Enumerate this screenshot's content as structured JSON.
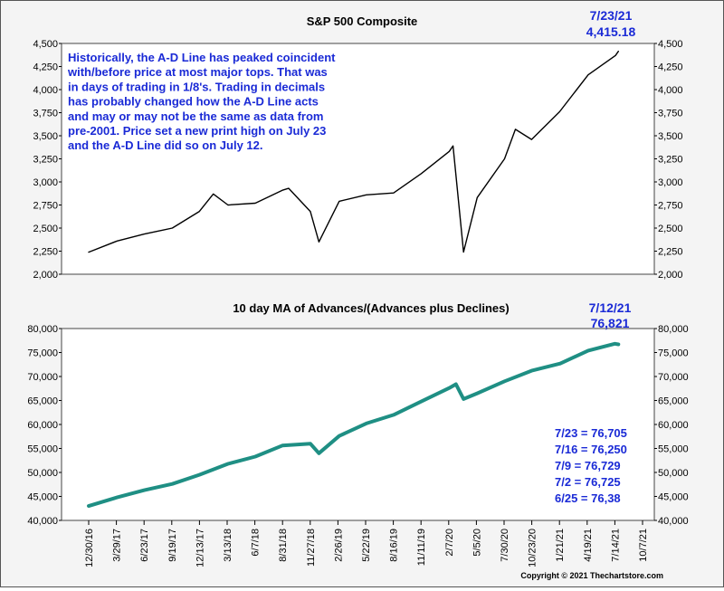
{
  "chart_data": [
    {
      "type": "line",
      "title": "S&P 500 Composite",
      "ylim": [
        2000,
        4500
      ],
      "yticks": [
        "2,000",
        "2,250",
        "2,500",
        "2,750",
        "3,000",
        "3,250",
        "3,500",
        "3,750",
        "4,000",
        "4,250",
        "4,500"
      ],
      "color": "#000000",
      "series": [
        {
          "x": [
            "2016-12-30",
            "2017-03-29",
            "2017-06-23",
            "2017-09-19",
            "2017-12-13",
            "2018-01-26",
            "2018-03-13",
            "2018-06-07",
            "2018-08-31",
            "2018-09-20",
            "2018-11-27",
            "2018-12-24",
            "2019-02-26",
            "2019-05-22",
            "2019-08-16",
            "2019-11-11",
            "2020-02-07",
            "2020-02-19",
            "2020-03-23",
            "2020-05-05",
            "2020-07-30",
            "2020-09-02",
            "2020-10-23",
            "2021-01-19",
            "2021-04-19",
            "2021-07-14",
            "2021-07-23"
          ],
          "values": [
            2239,
            2360,
            2435,
            2500,
            2680,
            2870,
            2750,
            2770,
            2910,
            2930,
            2680,
            2350,
            2790,
            2860,
            2880,
            3090,
            3330,
            3390,
            2240,
            2830,
            3250,
            3570,
            3460,
            3760,
            4160,
            4370,
            4415
          ]
        }
      ],
      "annotation": {
        "date": "7/23/21",
        "value": "4,415.18"
      },
      "note": [
        "Historically, the A-D Line has peaked coincident",
        "with/before price at most major tops.  That was",
        "in days of trading in 1/8's.  Trading in decimals",
        "has probably changed how the A-D Line acts",
        "and may or may not be the same as data from",
        "pre-2001.  Price set a new print high on July 23",
        "and the A-D Line did so on July 12."
      ]
    },
    {
      "type": "line",
      "title": "10 day MA of Advances/(Advances plus Declines)",
      "ylim": [
        40000,
        80000
      ],
      "yticks": [
        "40,000",
        "45,000",
        "50,000",
        "55,000",
        "60,000",
        "65,000",
        "70,000",
        "75,000",
        "80,000"
      ],
      "color": "#1f8f84",
      "xticks": [
        "12/30/16",
        "3/29/17",
        "6/23/17",
        "9/19/17",
        "12/13/17",
        "3/13/18",
        "6/7/18",
        "8/31/18",
        "11/27/18",
        "2/26/19",
        "5/22/19",
        "8/16/19",
        "11/11/19",
        "2/7/20",
        "5/5/20",
        "7/30/20",
        "10/23/20",
        "1/21/21",
        "4/19/21",
        "7/14/21",
        "10/7/21"
      ],
      "series": [
        {
          "x": [
            "2016-12-30",
            "2017-03-29",
            "2017-06-23",
            "2017-09-19",
            "2017-12-13",
            "2018-03-13",
            "2018-06-07",
            "2018-08-31",
            "2018-11-27",
            "2018-12-24",
            "2019-02-26",
            "2019-05-22",
            "2019-08-16",
            "2019-11-11",
            "2020-02-07",
            "2020-02-28",
            "2020-03-23",
            "2020-05-05",
            "2020-07-30",
            "2020-10-23",
            "2021-01-21",
            "2021-04-19",
            "2021-07-12",
            "2021-07-23"
          ],
          "values": [
            43000,
            44800,
            46300,
            47600,
            49500,
            51800,
            53300,
            55600,
            56000,
            54000,
            57600,
            60200,
            62000,
            64800,
            67600,
            68400,
            65300,
            66500,
            69000,
            71200,
            72700,
            75400,
            76821,
            76705
          ]
        }
      ],
      "annotation": {
        "date": "7/12/21",
        "value": "76,821"
      },
      "readings": [
        "7/23 = 76,705",
        "7/16 = 76,250",
        "7/9 = 76,729",
        "7/2 = 76,725",
        "6/25 = 76,38"
      ]
    }
  ],
  "copyright": "Copyright © 2021 Thechartstore.com"
}
